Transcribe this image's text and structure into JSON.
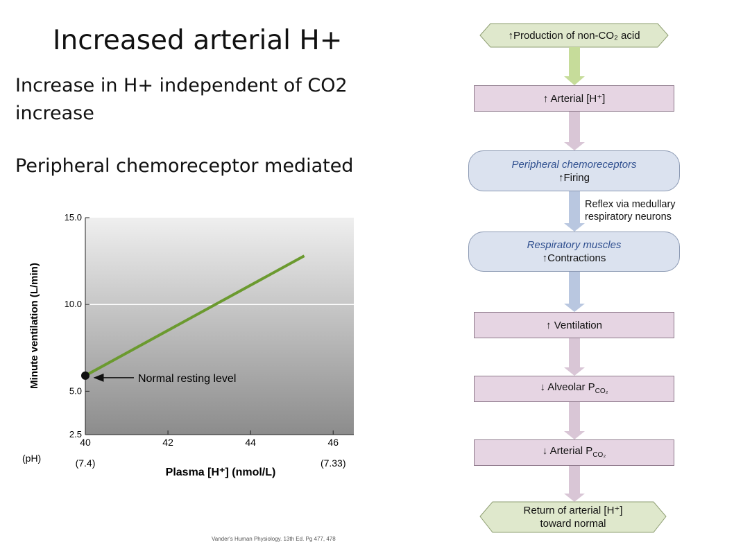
{
  "slide": {
    "title": "Increased arterial H+",
    "bullet1": "Increase in H+ independent of CO2 increase",
    "bullet2": "Peripheral chemoreceptor mediated",
    "citation": "Vander's Human Physiology. 13th Ed. Pg 477, 478"
  },
  "chart_data": {
    "type": "line",
    "xlabel": "Plasma [H⁺] (nmol/L)",
    "ylabel": "Minute ventilation (L/min)",
    "ph_label": "(pH)",
    "x_ticks": [
      40,
      42,
      44,
      46
    ],
    "ph_ticks": [
      {
        "x": 40,
        "label": "(7.4)"
      },
      {
        "x": 46,
        "label": "(7.33)"
      }
    ],
    "y_ticks": [
      2.5,
      5.0,
      10.0,
      15.0
    ],
    "xlim": [
      40,
      46.5
    ],
    "ylim": [
      2.5,
      15.0
    ],
    "series": [
      {
        "x": [
          40,
          45.3
        ],
        "y": [
          5.9,
          12.8
        ],
        "color": "#6b9a2f"
      }
    ],
    "annotation": {
      "text": "Normal resting level",
      "x": 40,
      "y": 5.9
    }
  },
  "flow": {
    "box1": "↑Production of non-CO₂ acid",
    "box2": "↑ Arterial [H⁺]",
    "box3_title": "Peripheral chemoreceptors",
    "box3_sub": "↑Firing",
    "side_note_1": "Reflex via medullary",
    "side_note_2": "respiratory neurons",
    "box4_title": "Respiratory muscles",
    "box4_sub": "↑Contractions",
    "box5": "↑ Ventilation",
    "box6": "↓ Alveolar P",
    "box6_sub": "CO₂",
    "box7": "↓ Arterial P",
    "box7_sub": "CO₂",
    "box8_line1": "Return of arterial [H⁺]",
    "box8_line2": "toward normal",
    "colors": {
      "rect": "#e6d5e3",
      "round": "#dbe2ef",
      "hex": "#dfe8cc",
      "arrow_green": "#c6dc9a",
      "arrow_purple": "#d9c6d6",
      "arrow_blue": "#b9c7e0"
    }
  }
}
